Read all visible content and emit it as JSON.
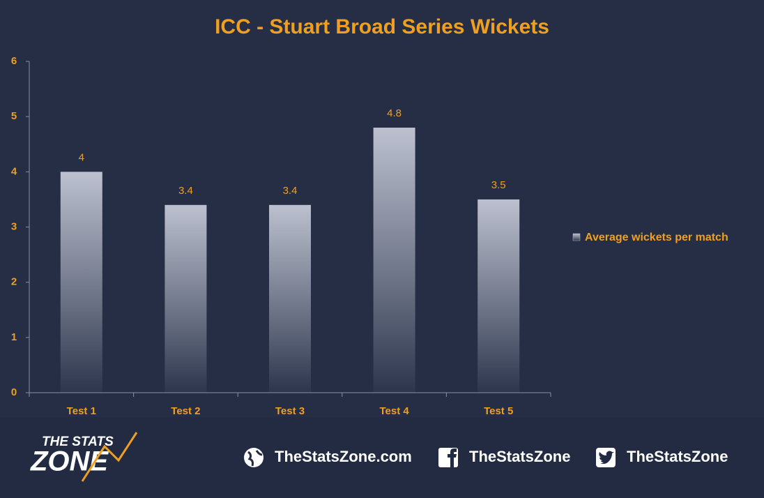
{
  "chart_data": {
    "type": "bar",
    "title": "ICC - Stuart Broad Series Wickets",
    "categories": [
      "Test 1",
      "Test 2",
      "Test 3",
      "Test 4",
      "Test 5"
    ],
    "series": [
      {
        "name": "Average wickets per match",
        "color": "#bcc0cf",
        "values": [
          4,
          3.4,
          3.4,
          4.8,
          3.5
        ]
      }
    ],
    "ylim": [
      0,
      6
    ],
    "yticks": [
      0,
      1,
      2,
      3,
      4,
      5,
      6
    ],
    "grid": false,
    "legend": "right",
    "text_color": "#f0a020"
  },
  "footer": {
    "logo_top": "THE STATS",
    "logo_bottom": "ZONE",
    "website": "TheStatsZone.com",
    "facebook": "TheStatsZone",
    "twitter": "TheStatsZone"
  }
}
